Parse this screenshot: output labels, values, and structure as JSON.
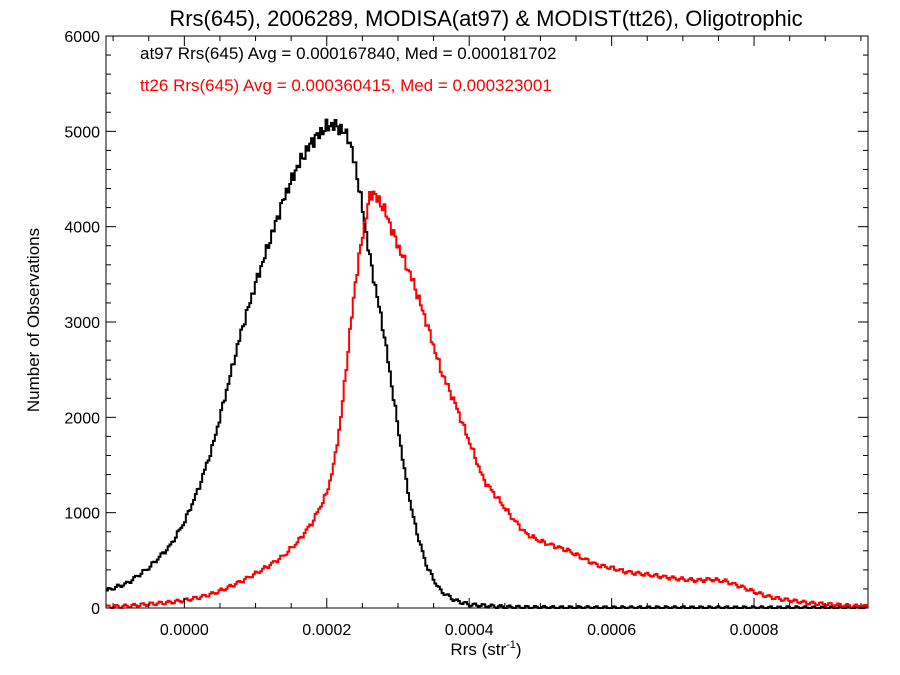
{
  "chart_data": {
    "type": "histogram",
    "title": "Rrs(645), 2006289, MODISA(at97) & MODIST(tt26), Oligotrophic",
    "xlabel_main": "Rrs (str",
    "xlabel_sup": "-1",
    "xlabel_end": ")",
    "ylabel": "Number of Observations",
    "xlim": [
      -0.00011,
      0.00096
    ],
    "ylim": [
      0,
      6000
    ],
    "x_ticks": [
      0.0,
      0.0002,
      0.0004,
      0.0006,
      0.0008
    ],
    "x_tick_labels": [
      "0.0000",
      "0.0002",
      "0.0004",
      "0.0006",
      "0.0008"
    ],
    "y_ticks": [
      0,
      1000,
      2000,
      3000,
      4000,
      5000,
      6000
    ],
    "y_tick_labels": [
      "0",
      "1000",
      "2000",
      "3000",
      "4000",
      "5000",
      "6000"
    ],
    "legend_placement": "top-left",
    "annotations": [
      {
        "text": "at97 Rrs(645) Avg = 0.000167840, Med = 0.000181702",
        "color": "#000000"
      },
      {
        "text": "tt26 Rrs(645) Avg = 0.000360415, Med = 0.000323001",
        "color": "#ff0000"
      }
    ],
    "series": [
      {
        "color": "#000000",
        "points": [
          [
            -0.00011,
            180
          ],
          [
            -8e-05,
            260
          ],
          [
            -5e-05,
            420
          ],
          [
            -2e-05,
            650
          ],
          [
            0.0,
            900
          ],
          [
            2e-05,
            1250
          ],
          [
            4e-05,
            1700
          ],
          [
            6e-05,
            2300
          ],
          [
            8e-05,
            2900
          ],
          [
            0.0001,
            3400
          ],
          [
            0.00012,
            3850
          ],
          [
            0.00014,
            4300
          ],
          [
            0.00016,
            4650
          ],
          [
            0.00018,
            4900
          ],
          [
            0.0002,
            5050
          ],
          [
            0.00021,
            5070
          ],
          [
            0.00022,
            5020
          ],
          [
            0.00023,
            4950
          ],
          [
            0.00024,
            4650
          ],
          [
            0.00025,
            4200
          ],
          [
            0.00026,
            3700
          ],
          [
            0.00027,
            3300
          ],
          [
            0.00028,
            2900
          ],
          [
            0.00029,
            2400
          ],
          [
            0.0003,
            1900
          ],
          [
            0.00031,
            1400
          ],
          [
            0.00032,
            1000
          ],
          [
            0.00033,
            700
          ],
          [
            0.00034,
            450
          ],
          [
            0.00035,
            300
          ],
          [
            0.00036,
            180
          ],
          [
            0.00038,
            80
          ],
          [
            0.0004,
            35
          ],
          [
            0.00045,
            10
          ],
          [
            0.0005,
            3
          ],
          [
            0.0006,
            1
          ],
          [
            0.00096,
            0
          ]
        ]
      },
      {
        "color": "#ff0000",
        "points": [
          [
            -0.00011,
            10
          ],
          [
            -8e-05,
            20
          ],
          [
            -5e-05,
            40
          ],
          [
            -2e-05,
            60
          ],
          [
            0.0,
            80
          ],
          [
            2e-05,
            110
          ],
          [
            4e-05,
            150
          ],
          [
            6e-05,
            210
          ],
          [
            8e-05,
            280
          ],
          [
            0.0001,
            360
          ],
          [
            0.00012,
            450
          ],
          [
            0.00014,
            550
          ],
          [
            0.00016,
            700
          ],
          [
            0.00018,
            900
          ],
          [
            0.0002,
            1200
          ],
          [
            0.00021,
            1500
          ],
          [
            0.00022,
            2000
          ],
          [
            0.00023,
            2700
          ],
          [
            0.00024,
            3400
          ],
          [
            0.00025,
            3900
          ],
          [
            0.00026,
            4300
          ],
          [
            0.000265,
            4370
          ],
          [
            0.00027,
            4300
          ],
          [
            0.00028,
            4200
          ],
          [
            0.00029,
            4000
          ],
          [
            0.0003,
            3800
          ],
          [
            0.00032,
            3450
          ],
          [
            0.00034,
            3000
          ],
          [
            0.00036,
            2500
          ],
          [
            0.00038,
            2150
          ],
          [
            0.0004,
            1750
          ],
          [
            0.00042,
            1350
          ],
          [
            0.00044,
            1150
          ],
          [
            0.00046,
            950
          ],
          [
            0.00048,
            780
          ],
          [
            0.0005,
            700
          ],
          [
            0.00052,
            650
          ],
          [
            0.00054,
            600
          ],
          [
            0.00056,
            520
          ],
          [
            0.00058,
            450
          ],
          [
            0.0006,
            420
          ],
          [
            0.00062,
            380
          ],
          [
            0.00064,
            360
          ],
          [
            0.00066,
            340
          ],
          [
            0.00068,
            320
          ],
          [
            0.0007,
            300
          ],
          [
            0.00072,
            290
          ],
          [
            0.00074,
            300
          ],
          [
            0.00076,
            280
          ],
          [
            0.00078,
            230
          ],
          [
            0.0008,
            170
          ],
          [
            0.00082,
            120
          ],
          [
            0.00084,
            90
          ],
          [
            0.00086,
            70
          ],
          [
            0.00088,
            50
          ],
          [
            0.0009,
            40
          ],
          [
            0.00092,
            30
          ],
          [
            0.00094,
            20
          ],
          [
            0.00096,
            15
          ]
        ]
      }
    ]
  }
}
